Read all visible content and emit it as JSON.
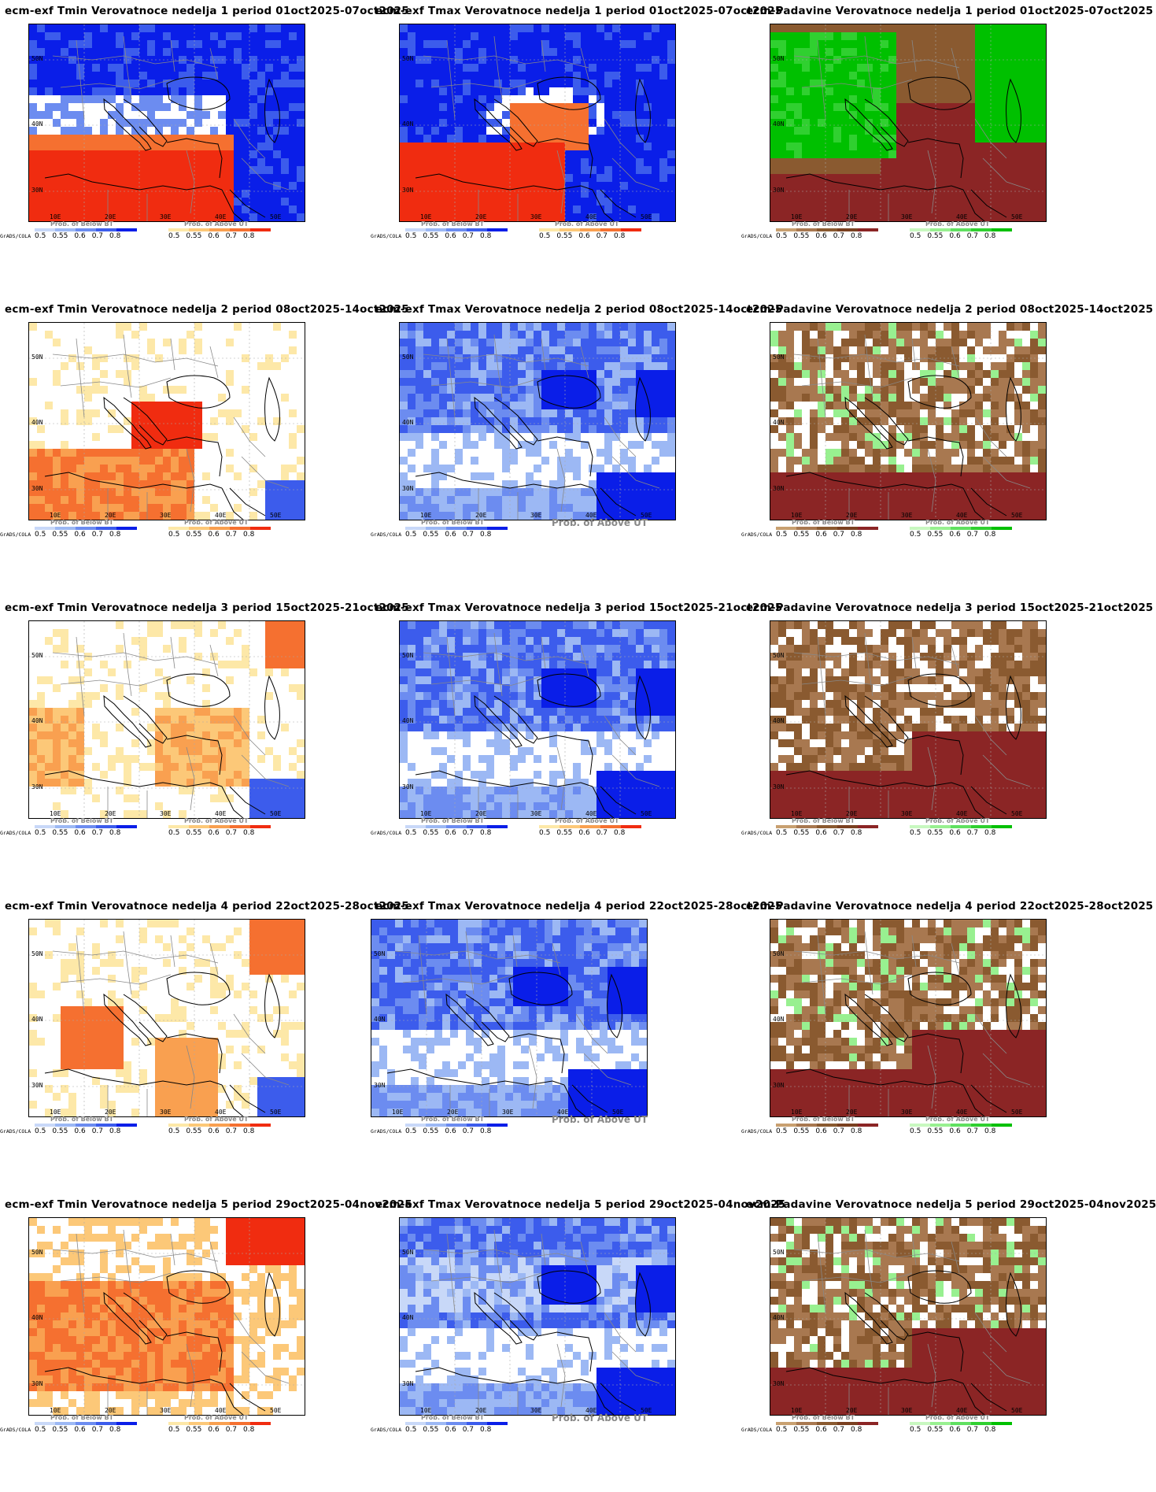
{
  "panels": [
    {
      "title": "ecm-exf Tmin Verovatnoce nedelja 1 period 01oct2025-07oct2025",
      "var": "tmin",
      "week": 1,
      "legend": "normal"
    },
    {
      "title": "ecm-exf Tmax Verovatnoce nedelja 1 period 01oct2025-07oct2025",
      "var": "tmax",
      "week": 1,
      "legend": "normal"
    },
    {
      "title": "ecm-Padavine Verovatnoce nedelja 1 period 01oct2025-07oct2025",
      "var": "prec",
      "week": 1,
      "legend": "normal"
    },
    {
      "title": "ecm-exf Tmin Verovatnoce nedelja 2 period 08oct2025-14oct2025",
      "var": "tmin",
      "week": 2,
      "legend": "normal"
    },
    {
      "title": "ecm-exf Tmax Verovatnoce nedelja 2 period 08oct2025-14oct2025",
      "var": "tmax",
      "week": 2,
      "legend": "belowonly"
    },
    {
      "title": "ecm-Padavine Verovatnoce nedelja 2 period 08oct2025-14oct2025",
      "var": "prec",
      "week": 2,
      "legend": "normal"
    },
    {
      "title": "ecm-exf Tmin Verovatnoce nedelja 3 period 15oct2025-21oct2025",
      "var": "tmin",
      "week": 3,
      "legend": "normal"
    },
    {
      "title": "ecm-exf Tmax Verovatnoce nedelja 3 period 15oct2025-21oct2025",
      "var": "tmax",
      "week": 3,
      "legend": "normal"
    },
    {
      "title": "ecm-Padavine Verovatnoce nedelja 3 period 15oct2025-21oct2025",
      "var": "prec",
      "week": 3,
      "legend": "normal"
    },
    {
      "title": "ecm-exf Tmin Verovatnoce nedelja 4 period 22oct2025-28oct2025",
      "var": "tmin",
      "week": 4,
      "legend": "normal"
    },
    {
      "title": "ecm-exf Tmax Verovatnoce nedelja 4 period 22oct2025-28oct2025",
      "var": "tmax",
      "week": 4,
      "legend": "belowonly"
    },
    {
      "title": "ecm-Padavine Verovatnoce nedelja 4 period 22oct2025-28oct2025",
      "var": "prec",
      "week": 4,
      "legend": "normal"
    },
    {
      "title": "ecm-exf Tmin Verovatnoce nedelja 5 period 29oct2025-04nov2025",
      "var": "tmin",
      "week": 5,
      "legend": "normal"
    },
    {
      "title": "ecm-exf Tmax Verovatnoce nedelja 5 period 29oct2025-04nov2025",
      "var": "tmax",
      "week": 5,
      "legend": "belowonly"
    },
    {
      "title": "ecm-Padavine Verovatnoce nedelja 5 period 29oct2025-04nov2025",
      "var": "prec",
      "week": 5,
      "legend": "normal"
    }
  ],
  "axes": {
    "lat_labels": [
      "50N",
      "40N",
      "30N"
    ],
    "lon_labels": [
      "10E",
      "20E",
      "30E",
      "40E",
      "50E"
    ]
  },
  "legend": {
    "grads": "GrADS/COLA",
    "below_title": "Prob. of Below BT",
    "above_title": "Prob. of Above UT",
    "below_ticks": [
      "0.5",
      "0.55",
      "0.6",
      "0.7",
      "0.8"
    ],
    "above_ticks": [
      "0.5",
      "0.55",
      "0.6",
      "0.7",
      "0.8"
    ]
  },
  "colors": {
    "temp_below": [
      "#c8d8f8",
      "#9cb8f4",
      "#6c8cf0",
      "#3c5cec",
      "#0a1ee8"
    ],
    "temp_above": [
      "#fde8a8",
      "#fcc878",
      "#f9a050",
      "#f57030",
      "#f02c10"
    ],
    "prec_below": [
      "#c8a070",
      "#a87850",
      "#8a5a30",
      "#7a4020",
      "#8b2525"
    ],
    "prec_above": [
      "#c8f8c0",
      "#98f090",
      "#60e060",
      "#30d030",
      "#00c000"
    ],
    "land_outline": "#888888",
    "coast": "#000000"
  }
}
